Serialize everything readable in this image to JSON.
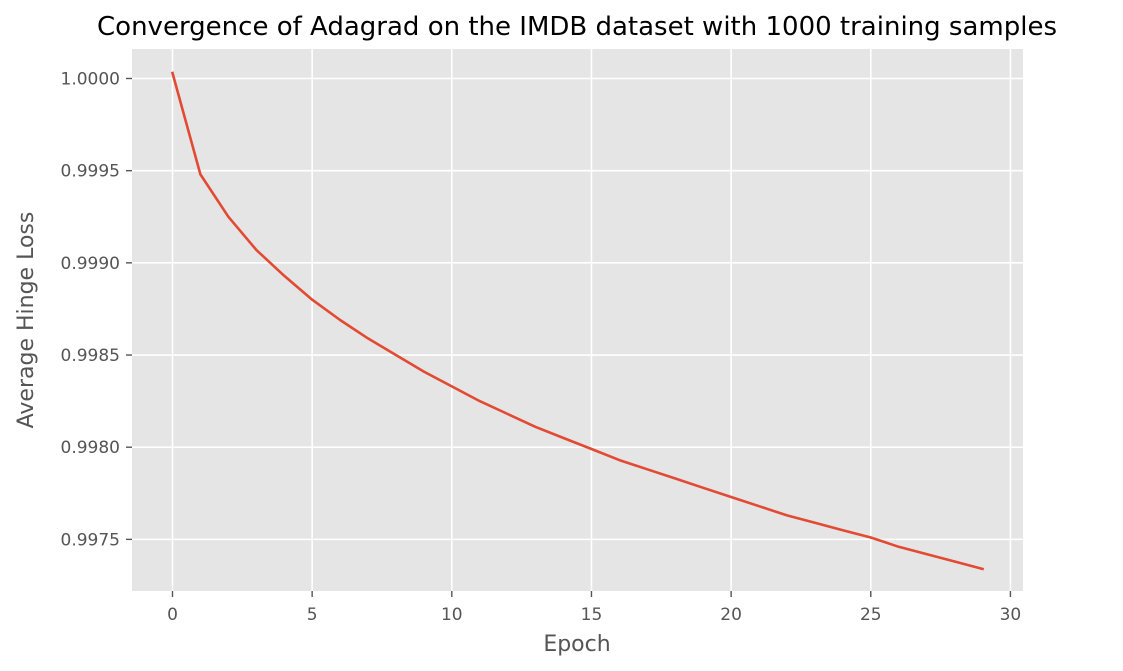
{
  "chart_data": {
    "type": "line",
    "title": "Convergence of Adagrad on the IMDB dataset with 1000 training samples",
    "xlabel": "Epoch",
    "ylabel": "Average Hinge Loss",
    "xlim": [
      -1.45,
      30.45
    ],
    "ylim": [
      0.99722,
      1.00016
    ],
    "xticks": [
      0,
      5,
      10,
      15,
      20,
      25,
      30
    ],
    "yticks": [
      0.9975,
      0.998,
      0.9985,
      0.999,
      0.9995,
      1.0
    ],
    "ytick_labels": [
      "0.9975",
      "0.9980",
      "0.9985",
      "0.9990",
      "0.9995",
      "1.0000"
    ],
    "grid": true,
    "background_color": "#e5e5e5",
    "series": [
      {
        "color": "#e24a33",
        "x": [
          0,
          1,
          2,
          3,
          4,
          5,
          6,
          7,
          8,
          9,
          10,
          11,
          12,
          13,
          14,
          15,
          16,
          17,
          18,
          19,
          20,
          21,
          22,
          23,
          24,
          25,
          26,
          27,
          28,
          29
        ],
        "values": [
          1.00003,
          0.99948,
          0.99925,
          0.99907,
          0.99893,
          0.9988,
          0.99869,
          0.99859,
          0.9985,
          0.99841,
          0.99833,
          0.99825,
          0.99818,
          0.99811,
          0.99805,
          0.99799,
          0.99793,
          0.99788,
          0.99783,
          0.99778,
          0.99773,
          0.99768,
          0.99763,
          0.99759,
          0.99755,
          0.99751,
          0.99746,
          0.99742,
          0.99738,
          0.99734
        ]
      }
    ]
  }
}
